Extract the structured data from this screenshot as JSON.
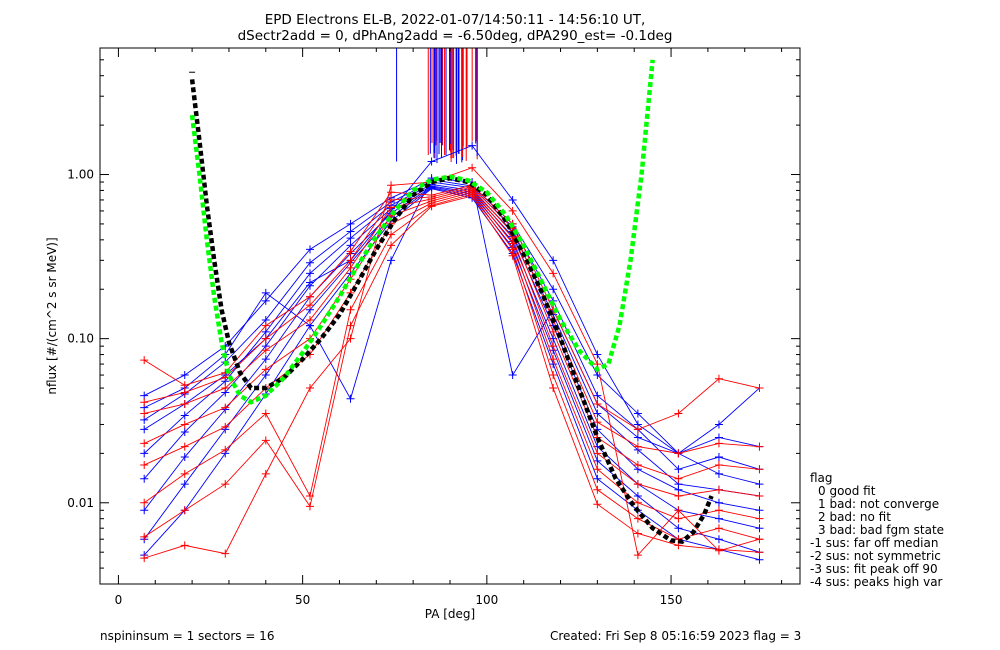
{
  "header": {
    "title_line1": "EPD Electrons EL-B, 2022-01-07/14:50:11 - 14:56:10 UT,",
    "title_line2": "dSectr2add = 0, dPhAng2add = -6.50deg, dPA290_est=  -0.1deg"
  },
  "footer": {
    "left": "nspininsum =  1  sectors = 16",
    "right": "Created: Fri Sep  8 05:16:59 2023   flag = 3"
  },
  "legend": {
    "title": "flag",
    "items": [
      "0 good fit",
      "1 bad: not converge",
      "2 bad: no fit",
      "3 bad: bad fgm state",
      "-1 sus: far off median",
      "-2 sus: not symmetric",
      "-3 sus: fit peak off 90",
      "-4 sus: peaks high var"
    ]
  },
  "colors": {
    "blue": "#0000ff",
    "red": "#ff0000",
    "green": "#00ff00",
    "black": "#000000"
  },
  "chart_data": {
    "type": "line",
    "xlabel": "PA [deg]",
    "ylabel": "nflux [#/(cm^2 s sr MeV)]",
    "xlim": [
      -5,
      185
    ],
    "ylim": [
      0.0032,
      5.9
    ],
    "yscale": "log",
    "x_ticks": [
      0,
      50,
      100,
      150
    ],
    "y_ticks": [
      {
        "value": 0.01,
        "label": "0.01"
      },
      {
        "value": 0.1,
        "label": "0.10"
      },
      {
        "value": 1.0,
        "label": "1.00"
      }
    ],
    "x": [
      7,
      18,
      29,
      40,
      52,
      63,
      74,
      85,
      96,
      107,
      118,
      130,
      141,
      152,
      163,
      174
    ],
    "series": [
      {
        "color": "blue",
        "values": [
          0.045,
          0.06,
          0.09,
          0.17,
          0.35,
          0.5,
          0.72,
          0.93,
          0.85,
          0.5,
          0.2,
          0.06,
          0.035,
          0.02,
          0.025,
          0.022
        ]
      },
      {
        "color": "blue",
        "values": [
          0.032,
          0.046,
          0.072,
          0.13,
          0.29,
          0.45,
          0.68,
          0.9,
          0.83,
          0.48,
          0.17,
          0.045,
          0.028,
          0.016,
          0.019,
          0.016
        ]
      },
      {
        "color": "blue",
        "values": [
          0.02,
          0.034,
          0.055,
          0.11,
          0.25,
          0.41,
          0.65,
          0.87,
          0.8,
          0.45,
          0.14,
          0.035,
          0.021,
          0.013,
          0.012,
          0.011
        ]
      },
      {
        "color": "blue",
        "values": [
          0.014,
          0.027,
          0.047,
          0.09,
          0.21,
          0.37,
          0.62,
          0.85,
          0.78,
          0.42,
          0.12,
          0.028,
          0.016,
          0.012,
          0.01,
          0.009
        ]
      },
      {
        "color": "blue",
        "values": [
          0.009,
          0.019,
          0.037,
          0.075,
          0.18,
          0.33,
          0.58,
          0.84,
          0.76,
          0.39,
          0.1,
          0.022,
          0.013,
          0.009,
          0.008,
          0.007
        ]
      },
      {
        "color": "blue",
        "values": [
          0.006,
          0.013,
          0.028,
          0.06,
          0.15,
          0.29,
          0.55,
          0.83,
          0.74,
          0.36,
          0.085,
          0.018,
          0.011,
          0.007,
          0.006,
          0.005
        ]
      },
      {
        "color": "blue",
        "values": [
          0.0048,
          0.009,
          0.02,
          0.046,
          0.12,
          0.25,
          0.52,
          0.82,
          0.72,
          0.33,
          0.07,
          0.014,
          0.009,
          0.006,
          0.0052,
          0.0045
        ]
      },
      {
        "color": "blue",
        "values": [
          0.038,
          0.05,
          0.08,
          0.19,
          0.12,
          0.043,
          0.3,
          0.95,
          0.9,
          0.06,
          0.15,
          0.04,
          0.025,
          0.02,
          0.03,
          0.05
        ]
      },
      {
        "color": "blue",
        "values": [
          0.028,
          0.04,
          0.06,
          0.1,
          0.22,
          0.3,
          0.6,
          1.2,
          1.5,
          0.7,
          0.3,
          0.08,
          0.03,
          0.02,
          0.015,
          0.013
        ]
      },
      {
        "color": "red",
        "values": [
          0.074,
          0.052,
          0.062,
          0.12,
          0.18,
          0.34,
          0.78,
          0.75,
          0.86,
          0.5,
          0.15,
          0.04,
          0.028,
          0.035,
          0.057,
          0.05
        ]
      },
      {
        "color": "red",
        "values": [
          0.041,
          0.047,
          0.058,
          0.1,
          0.16,
          0.3,
          0.7,
          0.73,
          0.84,
          0.47,
          0.13,
          0.031,
          0.022,
          0.02,
          0.023,
          0.022
        ]
      },
      {
        "color": "red",
        "values": [
          0.035,
          0.04,
          0.05,
          0.085,
          0.13,
          0.27,
          0.63,
          0.71,
          0.82,
          0.44,
          0.11,
          0.025,
          0.017,
          0.014,
          0.017,
          0.016
        ]
      },
      {
        "color": "red",
        "values": [
          0.023,
          0.03,
          0.038,
          0.065,
          0.1,
          0.23,
          0.56,
          0.69,
          0.8,
          0.41,
          0.09,
          0.02,
          0.013,
          0.011,
          0.012,
          0.011
        ]
      },
      {
        "color": "red",
        "values": [
          0.017,
          0.022,
          0.029,
          0.05,
          0.08,
          0.19,
          0.5,
          0.67,
          0.78,
          0.38,
          0.075,
          0.016,
          0.01,
          0.008,
          0.009,
          0.008
        ]
      },
      {
        "color": "red",
        "values": [
          0.01,
          0.015,
          0.021,
          0.035,
          0.011,
          0.15,
          0.43,
          0.65,
          0.76,
          0.35,
          0.06,
          0.012,
          0.008,
          0.006,
          0.007,
          0.006
        ]
      },
      {
        "color": "red",
        "values": [
          0.0062,
          0.009,
          0.013,
          0.024,
          0.0095,
          0.12,
          0.37,
          0.64,
          0.74,
          0.32,
          0.05,
          0.0098,
          0.0065,
          0.0055,
          0.0052,
          0.005
        ]
      },
      {
        "color": "red",
        "values": [
          0.0046,
          0.0055,
          0.0049,
          0.015,
          0.05,
          0.1,
          0.86,
          0.9,
          1.1,
          0.6,
          0.25,
          0.07,
          0.0048,
          0.009,
          0.0051,
          0.006
        ]
      }
    ],
    "fit_curves": [
      {
        "color": "black",
        "style": "dashed",
        "x": [
          20,
          22,
          24,
          26,
          28,
          30,
          33,
          36,
          40,
          45,
          50,
          55,
          60,
          65,
          70,
          75,
          80,
          85,
          90,
          95,
          100,
          105,
          110,
          115,
          120,
          125,
          130,
          135,
          140,
          145,
          150,
          153,
          156,
          159,
          161
        ],
        "y": [
          3.8,
          1.6,
          0.65,
          0.3,
          0.15,
          0.095,
          0.062,
          0.05,
          0.05,
          0.058,
          0.075,
          0.1,
          0.14,
          0.22,
          0.35,
          0.53,
          0.75,
          0.9,
          0.95,
          0.9,
          0.75,
          0.53,
          0.33,
          0.19,
          0.1,
          0.05,
          0.025,
          0.014,
          0.0095,
          0.007,
          0.0059,
          0.0058,
          0.0066,
          0.0085,
          0.011
        ]
      },
      {
        "color": "green",
        "style": "dashed",
        "x": [
          20,
          22,
          24,
          26,
          28,
          30,
          33,
          36,
          40,
          45,
          50,
          55,
          60,
          65,
          70,
          75,
          80,
          85,
          90,
          95,
          100,
          105,
          110,
          115,
          120,
          125,
          130,
          133,
          136,
          139,
          142,
          145
        ],
        "y": [
          2.3,
          1.0,
          0.4,
          0.18,
          0.095,
          0.06,
          0.045,
          0.041,
          0.045,
          0.058,
          0.082,
          0.12,
          0.18,
          0.28,
          0.42,
          0.6,
          0.8,
          0.93,
          0.97,
          0.92,
          0.78,
          0.57,
          0.37,
          0.22,
          0.13,
          0.085,
          0.065,
          0.07,
          0.12,
          0.3,
          1.0,
          5.0
        ]
      }
    ],
    "spikes": {
      "x_range": [
        84,
        98
      ],
      "y_range": [
        1.15,
        5.9
      ]
    }
  }
}
